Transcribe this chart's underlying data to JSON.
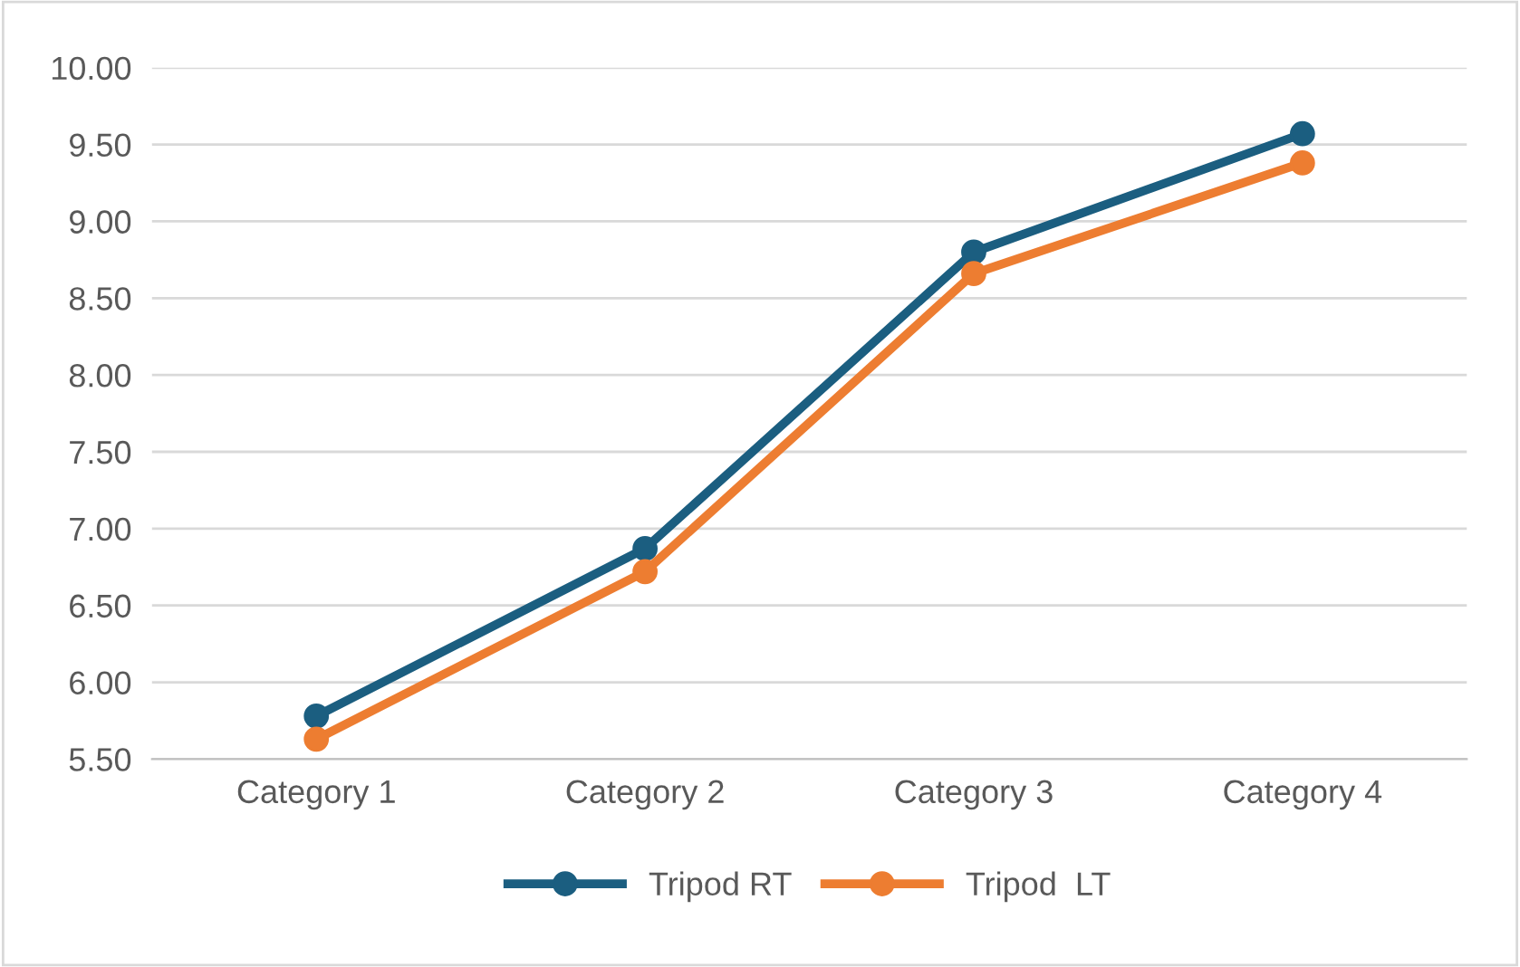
{
  "chart_data": {
    "type": "line",
    "categories": [
      "Category 1",
      "Category 2",
      "Category 3",
      "Category 4"
    ],
    "series": [
      {
        "name": "Tripod RT",
        "color": "#1b5e80",
        "values": [
          5.78,
          6.87,
          8.8,
          9.57
        ]
      },
      {
        "name": "Tripod  LT",
        "color": "#ed7d31",
        "values": [
          5.63,
          6.72,
          8.66,
          9.38
        ]
      }
    ],
    "ylim": [
      5.5,
      10.0
    ],
    "yticks": [
      {
        "value": 5.5,
        "label": "5.50"
      },
      {
        "value": 6.0,
        "label": "6.00"
      },
      {
        "value": 6.5,
        "label": "6.50"
      },
      {
        "value": 7.0,
        "label": "7.00"
      },
      {
        "value": 7.5,
        "label": "7.50"
      },
      {
        "value": 8.0,
        "label": "8.00"
      },
      {
        "value": 8.5,
        "label": "8.50"
      },
      {
        "value": 9.0,
        "label": "9.00"
      },
      {
        "value": 9.5,
        "label": "9.50"
      },
      {
        "value": 10.0,
        "label": "10.00"
      }
    ],
    "grid": "y",
    "legend": "bottom",
    "marker": "circle",
    "line_style": "solid"
  }
}
